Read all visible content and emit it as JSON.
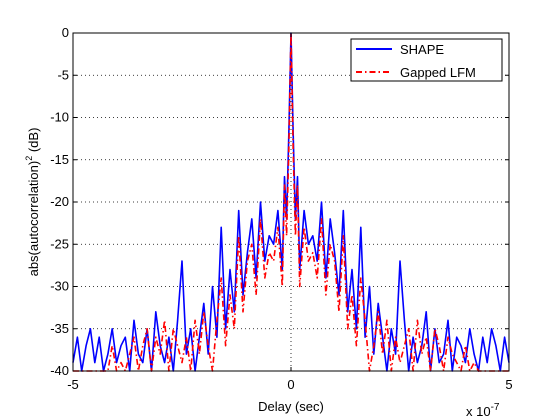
{
  "chart_data": {
    "type": "line",
    "title": "",
    "xlabel": "Delay (sec)",
    "ylabel_main": "abs(autocorrelation)",
    "ylabel_exp": "2",
    "ylabel_unit": " (dB)",
    "x_exponent_base": "x 10",
    "x_exponent_power": "-7",
    "xlim": [
      -5,
      5
    ],
    "ylim": [
      -40,
      0
    ],
    "x_ticks": [
      -5,
      0,
      5
    ],
    "y_ticks": [
      0,
      -5,
      -10,
      -15,
      -20,
      -25,
      -30,
      -35,
      -40
    ],
    "grid": "dotted",
    "legend_position": "top-right",
    "series": [
      {
        "name": "SHAPE",
        "color": "#0000ff",
        "style": "solid",
        "x": [
          -5.0,
          -4.9,
          -4.8,
          -4.7,
          -4.6,
          -4.5,
          -4.4,
          -4.3,
          -4.2,
          -4.1,
          -4.0,
          -3.9,
          -3.8,
          -3.7,
          -3.6,
          -3.5,
          -3.4,
          -3.3,
          -3.2,
          -3.1,
          -3.0,
          -2.9,
          -2.8,
          -2.7,
          -2.6,
          -2.5,
          -2.4,
          -2.3,
          -2.2,
          -2.1,
          -2.0,
          -1.9,
          -1.8,
          -1.7,
          -1.6,
          -1.5,
          -1.4,
          -1.3,
          -1.2,
          -1.1,
          -1.0,
          -0.9,
          -0.8,
          -0.7,
          -0.6,
          -0.5,
          -0.4,
          -0.3,
          -0.2,
          -0.15,
          -0.1,
          -0.05,
          0.0,
          0.05,
          0.1,
          0.15,
          0.2,
          0.3,
          0.4,
          0.5,
          0.6,
          0.7,
          0.8,
          0.9,
          1.0,
          1.1,
          1.2,
          1.3,
          1.4,
          1.5,
          1.6,
          1.7,
          1.8,
          1.9,
          2.0,
          2.1,
          2.2,
          2.3,
          2.4,
          2.5,
          2.6,
          2.7,
          2.8,
          2.9,
          3.0,
          3.1,
          3.2,
          3.3,
          3.4,
          3.5,
          3.6,
          3.7,
          3.8,
          3.9,
          4.0,
          4.1,
          4.2,
          4.3,
          4.4,
          4.5,
          4.6,
          4.7,
          4.8,
          4.9,
          5.0
        ],
        "y": [
          -39,
          -36,
          -40,
          -37,
          -35,
          -39,
          -36,
          -40,
          -38,
          -35,
          -39,
          -37,
          -36,
          -40,
          -34,
          -38,
          -39,
          -35,
          -40,
          -33,
          -37,
          -39,
          -36,
          -40,
          -34,
          -27,
          -38,
          -35,
          -40,
          -36,
          -32,
          -38,
          -30,
          -36,
          -23,
          -35,
          -28,
          -33,
          -21,
          -31,
          -26,
          -22,
          -29,
          -20,
          -27,
          -24,
          -25,
          -21,
          -28,
          -17,
          -22,
          -12,
          0,
          -12,
          -22,
          -17,
          -28,
          -21,
          -25,
          -24,
          -27,
          -20,
          -29,
          -22,
          -26,
          -31,
          -21,
          -33,
          -28,
          -35,
          -23,
          -36,
          -30,
          -38,
          -32,
          -36,
          -40,
          -35,
          -38,
          -27,
          -34,
          -40,
          -36,
          -39,
          -37,
          -33,
          -40,
          -35,
          -39,
          -38,
          -34,
          -40,
          -36,
          -37,
          -39,
          -35,
          -38,
          -40,
          -36,
          -39,
          -35,
          -37,
          -40,
          -36,
          -39
        ]
      },
      {
        "name": "Gapped LFM",
        "color": "#ff0000",
        "style": "dash-dot",
        "x": [
          -5.0,
          -4.9,
          -4.8,
          -4.7,
          -4.6,
          -4.5,
          -4.4,
          -4.3,
          -4.2,
          -4.1,
          -4.0,
          -3.9,
          -3.8,
          -3.7,
          -3.6,
          -3.5,
          -3.4,
          -3.3,
          -3.2,
          -3.1,
          -3.0,
          -2.9,
          -2.8,
          -2.7,
          -2.6,
          -2.5,
          -2.4,
          -2.3,
          -2.2,
          -2.1,
          -2.0,
          -1.9,
          -1.8,
          -1.7,
          -1.6,
          -1.5,
          -1.4,
          -1.3,
          -1.2,
          -1.1,
          -1.0,
          -0.9,
          -0.8,
          -0.7,
          -0.6,
          -0.5,
          -0.4,
          -0.3,
          -0.2,
          -0.15,
          -0.1,
          -0.05,
          0.0,
          0.05,
          0.1,
          0.15,
          0.2,
          0.3,
          0.4,
          0.5,
          0.6,
          0.7,
          0.8,
          0.9,
          1.0,
          1.1,
          1.2,
          1.3,
          1.4,
          1.5,
          1.6,
          1.7,
          1.8,
          1.9,
          2.0,
          2.1,
          2.2,
          2.3,
          2.4,
          2.5,
          2.6,
          2.7,
          2.8,
          2.9,
          3.0,
          3.1,
          3.2,
          3.3,
          3.4,
          3.5,
          3.6,
          3.7,
          3.8,
          3.9,
          4.0,
          4.1,
          4.2,
          4.3,
          4.4,
          4.5,
          4.6,
          4.7,
          4.8,
          4.9,
          5.0
        ],
        "y": [
          -40,
          -40,
          -40,
          -40,
          -40,
          -40,
          -40,
          -40,
          -40,
          -37,
          -40,
          -39,
          -40,
          -38,
          -36,
          -40,
          -37,
          -35,
          -40,
          -36,
          -38,
          -34,
          -40,
          -35,
          -37,
          -39,
          -36,
          -40,
          -34,
          -38,
          -33,
          -37,
          -40,
          -34,
          -29,
          -37,
          -31,
          -35,
          -24,
          -33,
          -27,
          -25,
          -31,
          -22,
          -29,
          -26,
          -27,
          -23,
          -30,
          -18,
          -24,
          -14,
          0,
          -14,
          -24,
          -18,
          -30,
          -23,
          -27,
          -26,
          -29,
          -22,
          -31,
          -25,
          -27,
          -33,
          -24,
          -35,
          -31,
          -37,
          -29,
          -34,
          -40,
          -37,
          -33,
          -38,
          -34,
          -40,
          -36,
          -39,
          -37,
          -35,
          -40,
          -34,
          -38,
          -36,
          -40,
          -35,
          -37,
          -40,
          -36,
          -38,
          -39,
          -40,
          -37,
          -40,
          -39,
          -40,
          -40,
          -40,
          -40,
          -40,
          -40,
          -40,
          -40
        ]
      }
    ]
  }
}
